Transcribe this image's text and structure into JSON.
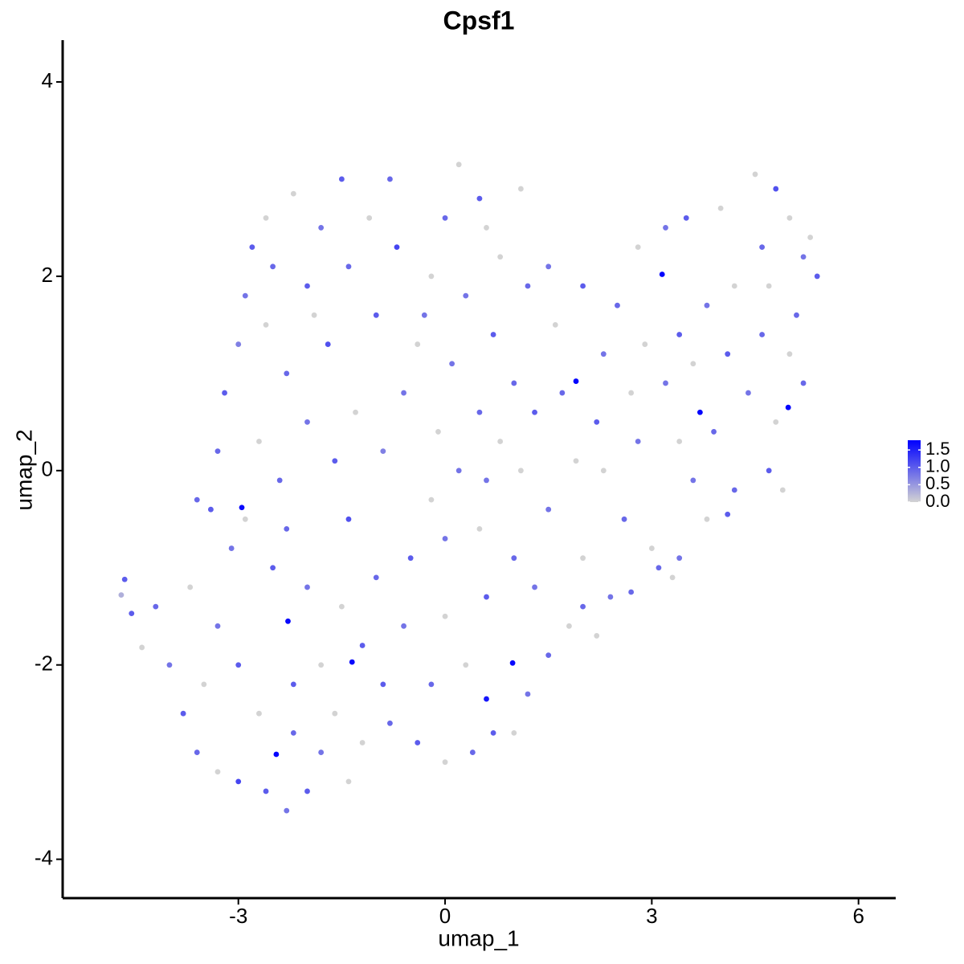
{
  "chart_data": {
    "type": "scatter",
    "title": "Cpsf1",
    "x_label": "umap_1",
    "y_label": "umap_2",
    "xlim": [
      -5.55,
      6.54
    ],
    "ylim": [
      -4.4,
      4.43
    ],
    "xticks": [
      -3,
      0,
      3,
      6
    ],
    "yticks": [
      -4,
      -2,
      0,
      2,
      4
    ],
    "grid": false,
    "legend_position": "right",
    "colors": [
      "#d3d3d3",
      "#0000ff"
    ],
    "colorlim": [
      0,
      1.78
    ],
    "colorticks": [
      {
        "value": 0,
        "label": "0.0"
      },
      0.5,
      {
        "value": 1,
        "label": "1.0"
      },
      1.5
    ],
    "x": [
      -2.2,
      -1.5,
      -0.8,
      0.2,
      0.5,
      -1.8,
      -2.5,
      -2.9,
      -3.0,
      -3.2,
      -2.6,
      -2.0,
      -1.4,
      -0.7,
      -0.2,
      0.3,
      0.8,
      1.1,
      -1.0,
      -1.7,
      -2.3,
      -0.4,
      0.1,
      0.7,
      1.0,
      -0.6,
      -1.3,
      -2.0,
      -2.7,
      -3.3,
      -0.1,
      0.5,
      -1.6,
      -0.9,
      0.2,
      0.8,
      -2.4,
      -1.1,
      0.0,
      -2.6,
      1.2,
      0.6,
      -0.3,
      -1.9,
      -2.8,
      1.3,
      1.1,
      -3.4,
      -3.1,
      -3.6,
      -4.2,
      -4.0,
      -3.8,
      -3.6,
      -3.3,
      -3.0,
      -2.6,
      -2.3,
      -2.0,
      -1.4,
      -3.7,
      -3.3,
      -3.0,
      -2.7,
      -2.2,
      -1.8,
      -1.2,
      -0.8,
      -0.4,
      0.0,
      0.4,
      0.7,
      1.0,
      1.2,
      1.5,
      1.8,
      -2.5,
      -2.0,
      -1.5,
      -1.0,
      -0.5,
      0.0,
      0.5,
      1.0,
      -1.8,
      -1.2,
      -0.6,
      0.0,
      0.6,
      1.3,
      -0.2,
      0.3,
      -0.9,
      -2.9,
      -1.4,
      -0.2,
      0.6,
      -3.5,
      -2.2,
      -1.6,
      2.0,
      2.2,
      2.4,
      -2.3,
      1.6,
      2.0,
      2.5,
      2.8,
      3.2,
      3.5,
      4.0,
      4.5,
      4.8,
      5.0,
      5.3,
      5.4,
      5.1,
      4.6,
      4.2,
      3.8,
      3.4,
      2.9,
      2.3,
      1.7,
      2.2,
      2.7,
      3.2,
      3.6,
      4.1,
      4.6,
      5.0,
      5.2,
      4.8,
      4.4,
      3.9,
      3.4,
      2.8,
      2.3,
      2.6,
      3.0,
      3.4,
      3.8,
      4.2,
      4.7,
      4.9,
      3.6,
      4.1,
      3.1,
      2.7,
      3.3,
      5.2,
      4.7,
      1.9,
      1.5,
      2.0,
      1.5,
      -2.95,
      -2.28,
      -2.45,
      -1.35,
      0.98,
      1.9,
      3.15,
      3.7,
      4.98,
      0.6,
      -4.7,
      -4.65,
      -4.55,
      -4.4
    ],
    "values": [
      2.85,
      3.0,
      3.0,
      3.15,
      2.8,
      2.5,
      2.1,
      1.8,
      1.3,
      0.8,
      1.5,
      1.9,
      2.1,
      2.3,
      2.0,
      1.8,
      2.2,
      2.9,
      1.6,
      1.3,
      1.0,
      1.3,
      1.1,
      1.4,
      0.9,
      0.8,
      0.6,
      0.5,
      0.3,
      0.2,
      0.4,
      0.6,
      0.1,
      0.2,
      0.0,
      0.3,
      -0.1,
      2.6,
      2.6,
      2.6,
      1.9,
      2.5,
      1.6,
      1.6,
      2.3,
      0.6,
      0.0,
      -0.4,
      -0.8,
      -0.3,
      -1.4,
      -2.0,
      -2.5,
      -2.9,
      -3.1,
      -3.2,
      -3.3,
      -3.5,
      -3.3,
      -3.2,
      -1.2,
      -1.6,
      -2.0,
      -2.5,
      -2.7,
      -2.9,
      -2.8,
      -2.6,
      -2.8,
      -3.0,
      -2.9,
      -2.7,
      -2.7,
      -2.3,
      -1.9,
      -1.6,
      -1.0,
      -1.2,
      -1.4,
      -1.1,
      -0.9,
      -0.7,
      -0.6,
      -0.9,
      -2.0,
      -1.8,
      -1.6,
      -1.5,
      -1.3,
      -1.2,
      -2.2,
      -2.0,
      -2.2,
      -0.5,
      -0.5,
      -0.3,
      -0.1,
      -2.2,
      -2.2,
      -2.5,
      -1.4,
      -1.7,
      -1.3,
      -0.6,
      1.5,
      1.9,
      1.7,
      2.3,
      2.5,
      2.6,
      2.7,
      3.05,
      2.9,
      2.6,
      2.4,
      2.0,
      1.6,
      2.3,
      1.9,
      1.7,
      1.4,
      1.3,
      1.2,
      0.8,
      0.5,
      0.8,
      0.9,
      1.1,
      1.2,
      1.4,
      1.2,
      0.9,
      0.5,
      0.8,
      0.4,
      0.3,
      0.3,
      0.0,
      -0.5,
      -0.8,
      -0.9,
      -0.5,
      -0.2,
      0.0,
      -0.2,
      -0.1,
      -0.45,
      -1.0,
      -1.25,
      -1.1,
      2.2,
      1.9,
      0.1,
      -0.4,
      -0.9,
      2.1,
      -0.38,
      -1.55,
      -2.92,
      -1.97,
      -1.98,
      0.92,
      2.02,
      0.6,
      0.65,
      -2.35,
      -1.28,
      -1.12,
      -1.47,
      -1.82
    ],
    "expression": [
      0,
      1.0,
      0.9,
      0,
      1.0,
      0.8,
      0.9,
      0.8,
      0.7,
      1.0,
      0,
      1.0,
      0.9,
      1.2,
      0,
      0.8,
      0,
      0,
      1.0,
      1.1,
      0.9,
      0,
      0.8,
      1.0,
      0.9,
      0.8,
      0,
      0.8,
      0,
      0.9,
      0,
      0.9,
      1.0,
      0.7,
      0.8,
      0,
      0.9,
      0,
      0.9,
      0,
      0.9,
      0,
      0.8,
      0,
      1.0,
      1.0,
      0,
      1.0,
      0.8,
      0.9,
      0.9,
      0.8,
      1.0,
      0.9,
      0,
      1.2,
      1.0,
      0.8,
      1.0,
      0,
      0,
      0.8,
      1.0,
      0,
      0.9,
      0.8,
      0,
      0.9,
      1.0,
      0,
      0.9,
      1.0,
      0,
      0.8,
      0.9,
      0,
      1.0,
      0.8,
      0,
      0.9,
      1.0,
      0.8,
      0,
      0.9,
      0,
      1.0,
      0.8,
      0,
      1.0,
      0.8,
      0.9,
      0,
      1.0,
      0,
      1.1,
      0,
      0.8,
      0,
      1.0,
      0,
      0.9,
      0,
      0.8,
      0.9,
      0,
      1.0,
      0.9,
      0,
      0.8,
      1.0,
      0,
      0,
      1.1,
      0,
      0,
      1.0,
      0.9,
      0.9,
      0,
      0.8,
      1.0,
      0,
      0.8,
      0.9,
      1.0,
      0,
      0.8,
      0,
      1.0,
      0.9,
      0,
      0.9,
      0,
      0.8,
      0.9,
      0,
      0.8,
      0,
      0.9,
      0,
      0.8,
      0,
      0.9,
      1.0,
      0,
      0.8,
      1.0,
      0.9,
      0.9,
      0,
      0.8,
      0,
      0,
      0.8,
      0,
      0.8,
      1.7,
      1.7,
      1.75,
      1.7,
      1.7,
      1.75,
      1.75,
      1.75,
      1.75,
      1.6,
      0.3,
      1.0,
      1.0,
      0
    ]
  }
}
